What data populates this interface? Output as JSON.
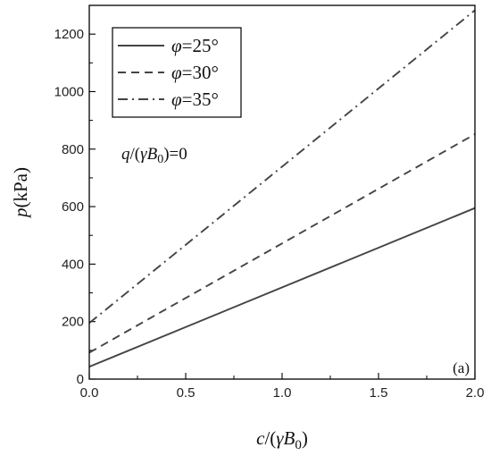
{
  "chart_data": {
    "type": "line",
    "xlabel_parts": [
      "c",
      "/(",
      "γB",
      "0",
      ")"
    ],
    "ylabel_parts": [
      "p",
      "(kPa)"
    ],
    "xlim": [
      0,
      2
    ],
    "ylim": [
      0,
      1300
    ],
    "x_ticks": [
      "0.0",
      "0.5",
      "1.0",
      "1.5",
      "2.0"
    ],
    "x_tick_values": [
      0,
      0.5,
      1.0,
      1.5,
      2.0
    ],
    "y_ticks": [
      "0",
      "200",
      "400",
      "600",
      "800",
      "1000",
      "1200"
    ],
    "y_tick_values": [
      0,
      200,
      400,
      600,
      800,
      1000,
      1200
    ],
    "grid": false,
    "legend_position": "top-left",
    "series": [
      {
        "name_symbol": "φ",
        "name_value": "=25°",
        "dash": "solid",
        "x": [
          0,
          2
        ],
        "y": [
          43,
          595
        ]
      },
      {
        "name_symbol": "φ",
        "name_value": "=30°",
        "dash": "dashed",
        "x": [
          0,
          2
        ],
        "y": [
          92,
          852
        ]
      },
      {
        "name_symbol": "φ",
        "name_value": "=35°",
        "dash": "dashdot",
        "x": [
          0,
          2
        ],
        "y": [
          195,
          1283
        ]
      }
    ],
    "annotation_parts": [
      "q",
      "/(",
      "γB",
      "0",
      ")=0"
    ],
    "panel_label": "(a)"
  }
}
